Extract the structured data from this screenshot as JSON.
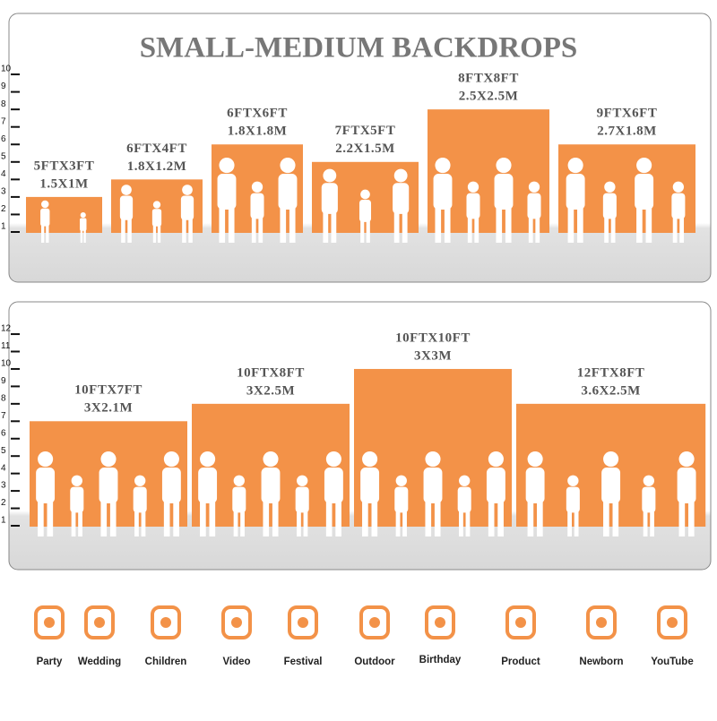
{
  "title": "SMALL-MEDIUM BACKDROPS",
  "panels": [
    {
      "yticks": [
        1,
        2,
        3,
        4,
        5,
        6,
        7,
        8,
        9,
        10
      ],
      "items": [
        {
          "label": "5FTX3FT",
          "metric": "1.5X1M",
          "width": 5,
          "height": 3
        },
        {
          "label": "6FTX4FT",
          "metric": "1.8X1.2M",
          "width": 6,
          "height": 4
        },
        {
          "label": "6FTX6FT",
          "metric": "1.8X1.8M",
          "width": 6,
          "height": 6
        },
        {
          "label": "7FTX5FT",
          "metric": "2.2X1.5M",
          "width": 7,
          "height": 5
        },
        {
          "label": "8FTX8FT",
          "metric": "2.5X2.5M",
          "width": 8,
          "height": 8
        },
        {
          "label": "9FTX6FT",
          "metric": "2.7X1.8M",
          "width": 9,
          "height": 6
        }
      ]
    },
    {
      "yticks": [
        1,
        2,
        3,
        4,
        5,
        6,
        7,
        8,
        9,
        10,
        11,
        12
      ],
      "items": [
        {
          "label": "10FTX7FT",
          "metric": "3X2.1M",
          "width": 10,
          "height": 7
        },
        {
          "label": "10FTX8FT",
          "metric": "3X2.5M",
          "width": 10,
          "height": 8
        },
        {
          "label": "10FTX10FT",
          "metric": "3X3M",
          "width": 10,
          "height": 10
        },
        {
          "label": "12FTX8FT",
          "metric": "3.6X2.5M",
          "width": 12,
          "height": 8
        }
      ]
    }
  ],
  "uses": [
    "Party",
    "Wedding",
    "Children",
    "Video",
    "Festival",
    "Outdoor",
    "Birthday",
    "Product",
    "Newborn",
    "YouTube"
  ]
}
